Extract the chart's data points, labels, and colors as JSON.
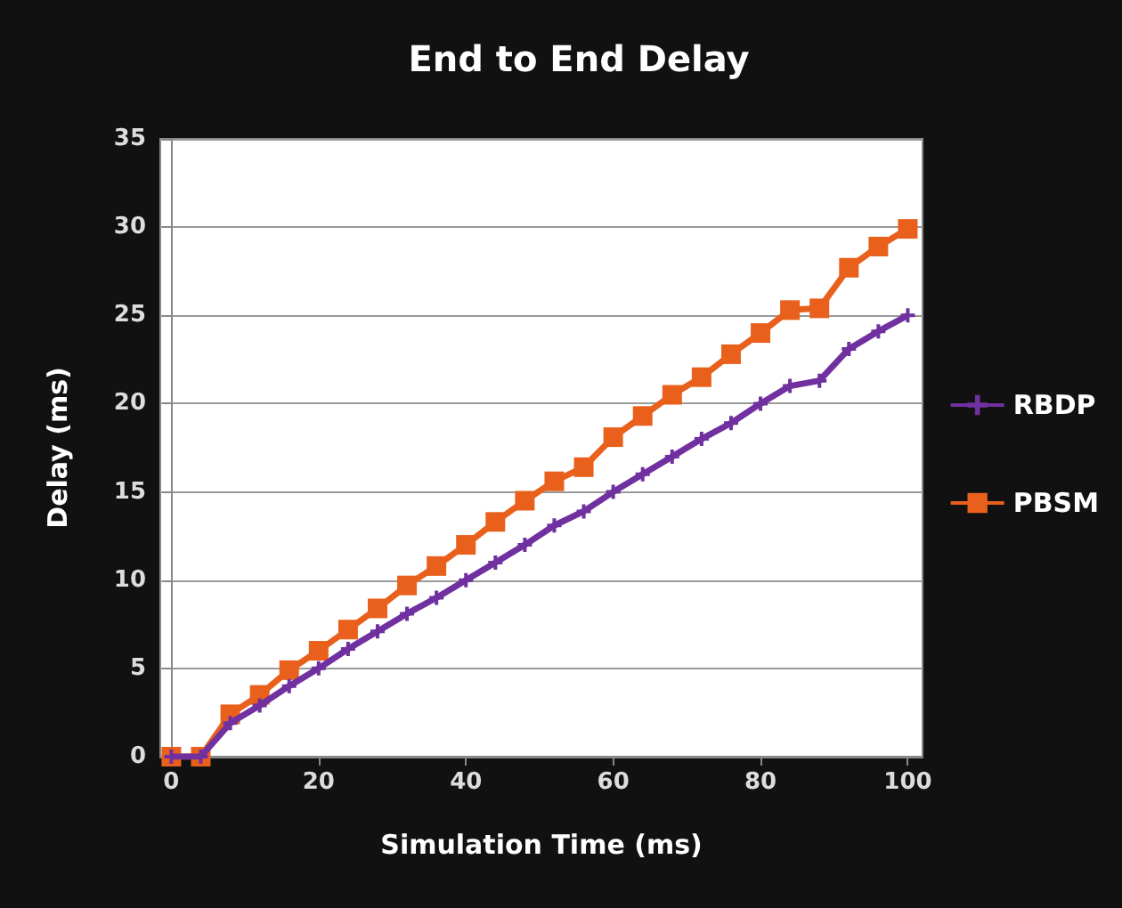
{
  "chart_data": {
    "type": "line",
    "title": "End to End Delay",
    "xlabel": "Simulation Time (ms)",
    "ylabel": "Delay (ms)",
    "x": [
      0,
      4,
      8,
      12,
      16,
      20,
      24,
      28,
      32,
      36,
      40,
      44,
      48,
      52,
      56,
      60,
      64,
      68,
      72,
      76,
      80,
      84,
      88,
      92,
      96,
      100
    ],
    "series": [
      {
        "name": "RBDP",
        "color": "#7030a0",
        "marker": "cross",
        "values": [
          0,
          0,
          1.9,
          2.9,
          4.0,
          5.0,
          6.1,
          7.1,
          8.1,
          9.0,
          10.0,
          11.0,
          12.0,
          13.1,
          13.9,
          15.0,
          16.0,
          17.0,
          18.0,
          18.9,
          20.0,
          21.0,
          21.3,
          23.1,
          24.1,
          25.0
        ]
      },
      {
        "name": "PBSM",
        "color": "#e8601c",
        "marker": "square",
        "values": [
          0,
          0,
          2.4,
          3.5,
          4.9,
          6.0,
          7.2,
          8.4,
          9.7,
          10.8,
          12.0,
          13.3,
          14.5,
          15.6,
          16.4,
          18.1,
          19.3,
          20.5,
          21.5,
          22.8,
          24.0,
          25.3,
          25.4,
          27.7,
          28.9,
          29.9
        ]
      }
    ],
    "xlim": [
      -1.5,
      102
    ],
    "xticks": [
      0,
      20,
      40,
      60,
      80,
      100
    ],
    "ylim": [
      0,
      35
    ],
    "yticks": [
      0,
      5,
      10,
      15,
      20,
      25,
      30,
      35
    ],
    "grid": "y",
    "legend": "right"
  }
}
